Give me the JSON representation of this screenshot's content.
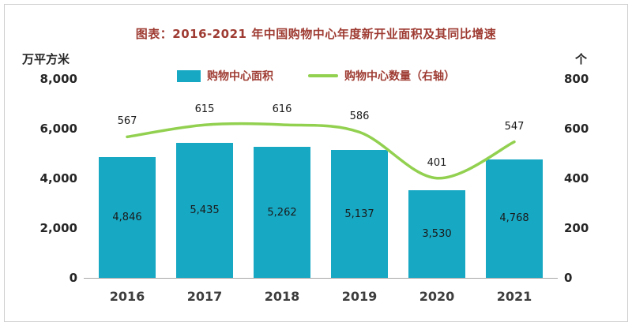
{
  "frame": {
    "title": "图表：2016-2021 年中国购物中心年度新开业面积及其同比增速"
  },
  "legend": [
    {
      "label": "购物中心面积",
      "type": "bar",
      "color": "#17A8C4"
    },
    {
      "label": "购物中心数量（右轴）",
      "type": "line",
      "color": "#92D050"
    }
  ],
  "axes": {
    "left_unit": "万平方米",
    "right_unit": "个",
    "left_ticks": [
      "8,000",
      "6,000",
      "4,000",
      "2,000",
      "0"
    ],
    "right_ticks": [
      "800",
      "600",
      "400",
      "200",
      "0"
    ]
  },
  "chart_data": {
    "type": "bar+line",
    "title": "图表：2016-2021 年中国购物中心年度新开业面积及其同比增速",
    "categories": [
      "2016",
      "2017",
      "2018",
      "2019",
      "2020",
      "2021"
    ],
    "series": [
      {
        "name": "购物中心面积",
        "type": "bar",
        "axis": "left",
        "color": "#17A8C4",
        "values": [
          4846,
          5435,
          5262,
          5137,
          3530,
          4768
        ],
        "labels": [
          "4,846",
          "5,435",
          "5,262",
          "5,137",
          "3,530",
          "4,768"
        ]
      },
      {
        "name": "购物中心数量（右轴）",
        "type": "line",
        "axis": "right",
        "color": "#92D050",
        "values": [
          567,
          615,
          616,
          586,
          401,
          547
        ],
        "labels": [
          "567",
          "615",
          "616",
          "586",
          "401",
          "547"
        ]
      }
    ],
    "left_axis": {
      "label": "万平方米",
      "min": 0,
      "max": 8000,
      "step": 2000
    },
    "right_axis": {
      "label": "个",
      "min": 0,
      "max": 800,
      "step": 200
    },
    "grid": false,
    "legend_position": "top"
  },
  "colors": {
    "bar": "#17A8C4",
    "line": "#92D050",
    "title_text": "#9E3B32",
    "axis_text": "#262626",
    "border": "#cfcfcf"
  }
}
